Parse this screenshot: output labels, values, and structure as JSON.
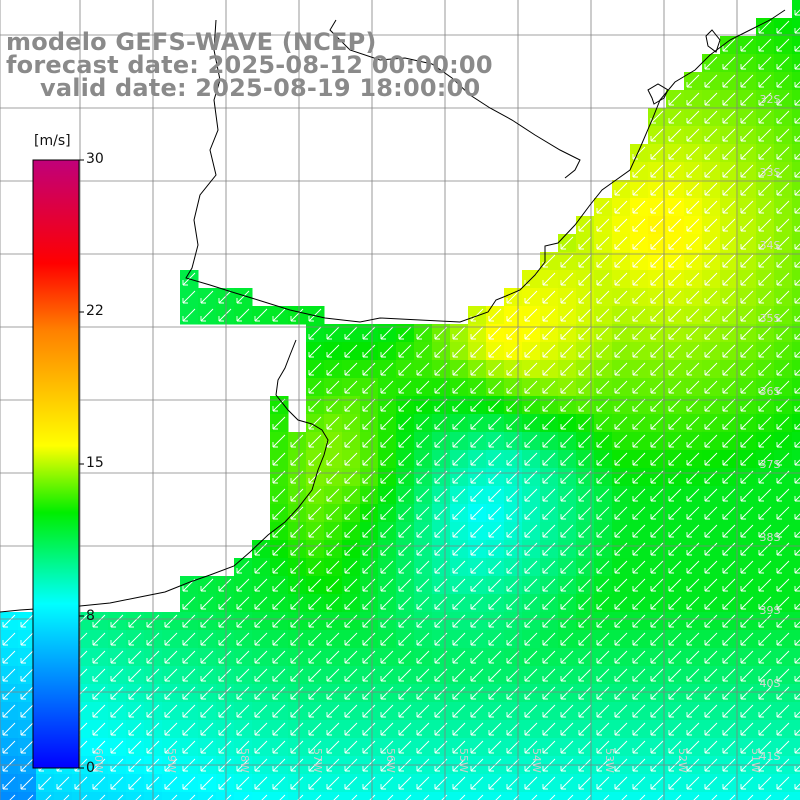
{
  "title": {
    "line1": "modelo GEFS-WAVE (NCEP)",
    "line2": "forecast date: 2025-08-12 00:00:00",
    "line3": "valid date: 2025-08-19 18:00:00"
  },
  "colorbar": {
    "unit": "[m/s]",
    "min": 0,
    "max": 30,
    "ticks": [
      "30",
      "22",
      "15",
      "8",
      "0"
    ],
    "tick_values": [
      30,
      22,
      15,
      8,
      0
    ],
    "colors": [
      "#0000ff",
      "#00ffff",
      "#00ee00",
      "#ffff00",
      "#ff8000",
      "#ff0000",
      "#c0007a"
    ]
  },
  "map": {
    "lat_labels": [
      "32S",
      "33S",
      "34S",
      "35S",
      "36S",
      "37S",
      "38S",
      "39S",
      "40S",
      "41S"
    ],
    "lon_labels": [
      "60W",
      "59W",
      "58W",
      "57W",
      "56W",
      "55W",
      "54W",
      "53W",
      "52W",
      "51W"
    ],
    "grid": true,
    "wind_direction": "toward southwest",
    "colors": {
      "land": "#ffffff",
      "coast": "#000000",
      "grid": "#808080",
      "vectors": "#ffffff"
    }
  }
}
